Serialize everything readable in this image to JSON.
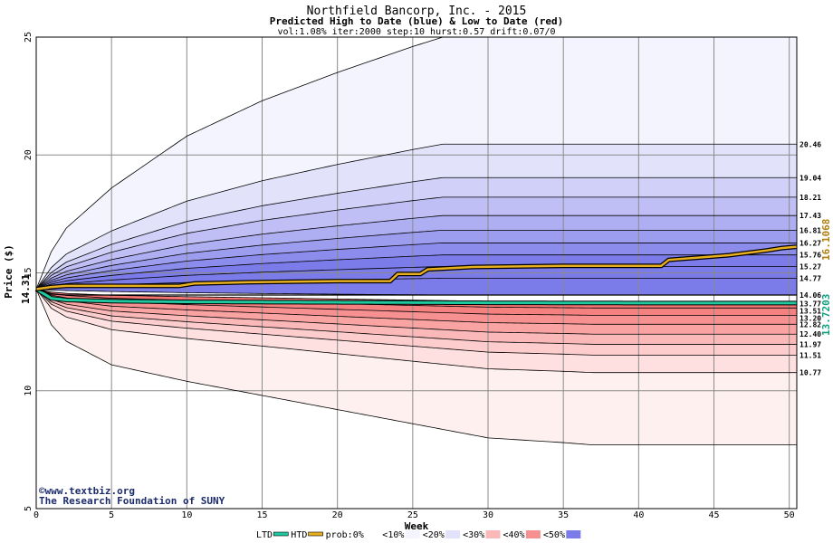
{
  "chart_data": {
    "type": "area",
    "title": "Northfield Bancorp, Inc. - 2015",
    "subtitle": "Predicted High to Date (blue) &  Low to Date (red)",
    "params": "vol:1.08% iter:2000 step:10 hurst:0.57 drift:0.07/0",
    "xlabel": "Week",
    "ylabel": "Price ($)",
    "xlim": [
      0,
      50.5
    ],
    "ylim": [
      5,
      25
    ],
    "xticks": [
      0,
      5,
      10,
      15,
      20,
      25,
      30,
      35,
      40,
      45,
      50
    ],
    "yticks": [
      5,
      10,
      15,
      20,
      25
    ],
    "grid": true,
    "start_price": 14.31,
    "start_label": "14.31",
    "colors": {
      "outer": "#f4f4fe",
      "htd": "#20c8a0",
      "prob_line": "#e8b020",
      "blue_bands": [
        "#f4f4fe",
        "#e2e2fb",
        "#d0d0f8",
        "#bfbff5",
        "#aeaef2",
        "#9d9def",
        "#8c8cec",
        "#7b7be9"
      ],
      "red_bands": [
        "#fff0f0",
        "#ffe0e0",
        "#fdcdcd",
        "#fbb8b8",
        "#f9a3a3",
        "#f79090",
        "#f58080",
        "#f57575"
      ]
    },
    "high_envelope": {
      "x": [
        0,
        1,
        2,
        5,
        10,
        15,
        20,
        25,
        27,
        30,
        50.5
      ],
      "y": [
        14.31,
        15.9,
        16.9,
        18.6,
        20.8,
        22.3,
        23.5,
        24.6,
        25.0,
        25.0,
        25.0
      ]
    },
    "low_envelope": {
      "x": [
        0,
        1,
        2,
        5,
        10,
        15,
        20,
        25,
        30,
        35,
        37,
        50.5
      ],
      "y": [
        14.31,
        12.8,
        12.1,
        11.1,
        10.4,
        9.8,
        9.2,
        8.6,
        8.0,
        7.8,
        7.7,
        7.7
      ]
    },
    "high_levels": [
      20.46,
      19.04,
      18.21,
      17.43,
      16.81,
      16.27,
      15.76,
      15.27,
      14.77
    ],
    "low_levels": [
      13.77,
      13.51,
      13.2,
      12.82,
      12.4,
      11.97,
      11.51,
      10.77
    ],
    "median_level": 14.06,
    "level_labels": [
      "20.46",
      "19.04",
      "18.21",
      "17.43",
      "16.81",
      "16.27",
      "15.76",
      "15.27",
      "14.77",
      "14.06",
      "13.77",
      "13.51",
      "13.20",
      "12.82",
      "12.40",
      "11.97",
      "11.51",
      "10.77"
    ],
    "htd_value": 13.7203,
    "htd_label": "13.7203",
    "prob_line": {
      "x": [
        0,
        1,
        2,
        5,
        9.5,
        10.5,
        14,
        20,
        23.5,
        24,
        25.5,
        26,
        29,
        35,
        41.5,
        42,
        46,
        48.5,
        49.5,
        50.5
      ],
      "y": [
        14.31,
        14.4,
        14.45,
        14.45,
        14.45,
        14.55,
        14.6,
        14.65,
        14.65,
        14.95,
        14.95,
        15.15,
        15.25,
        15.3,
        15.3,
        15.55,
        15.75,
        15.95,
        16.05,
        16.1068
      ]
    },
    "prob_label": "16.1068",
    "htd_line": {
      "x": [
        0,
        1,
        2,
        5,
        10,
        20,
        30,
        40,
        50.5
      ],
      "y": [
        14.31,
        13.92,
        13.85,
        13.8,
        13.77,
        13.75,
        13.73,
        13.72,
        13.7203
      ]
    },
    "ltd_line": {
      "x": [
        0,
        1,
        2,
        5,
        50.5
      ],
      "y": [
        14.31,
        14.1,
        14.06,
        14.06,
        14.06
      ]
    }
  },
  "footer": {
    "copyright": "©www.textbiz.org",
    "org": "The Research Foundation of SUNY"
  },
  "legend": {
    "items": [
      {
        "label": "LTD",
        "kind": "line",
        "color": "#20c8a0"
      },
      {
        "label": "HTD",
        "kind": "line",
        "color": "#e8b020"
      },
      {
        "label": "prob:0%",
        "kind": "swatch",
        "color": "#ffffff"
      },
      {
        "label": "<10%",
        "kind": "swatch",
        "color": "#f4f4fe"
      },
      {
        "label": "<20%",
        "kind": "swatch",
        "color": "#e2e2fb"
      },
      {
        "label": "<30%",
        "kind": "swatch",
        "color": "#fbb8b8"
      },
      {
        "label": "<40%",
        "kind": "swatch",
        "color": "#f79090"
      },
      {
        "label": "<50%",
        "kind": "swatch",
        "color": "#7b7be9"
      }
    ],
    "lead": "<"
  }
}
